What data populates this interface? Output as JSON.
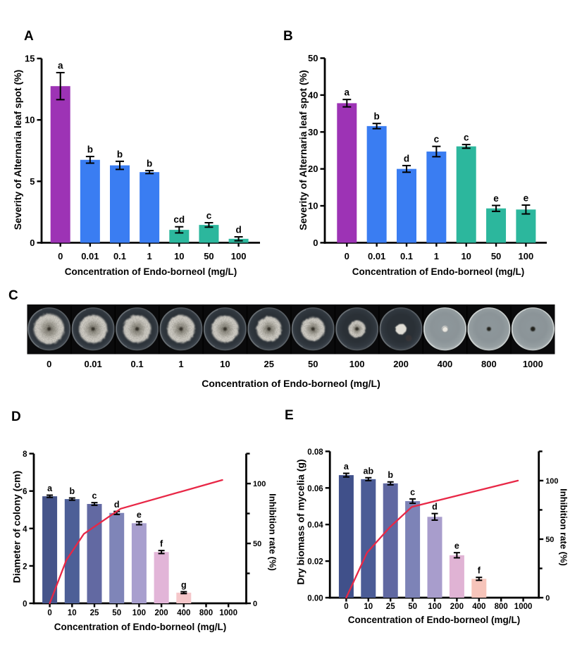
{
  "colors": {
    "purple": "#9d33b5",
    "blue": "#3a7df2",
    "teal": "#2cb79d",
    "red": "#e82746",
    "axis": "#000000"
  },
  "chart_data": [
    {
      "id": "A",
      "type": "bar",
      "panel_label": "A",
      "ylabel": "Severity of Alternaria leaf spot (%)",
      "xlabel": "Concentration of Endo-borneol (mg/L)",
      "categories": [
        "0",
        "0.01",
        "0.1",
        "1",
        "10",
        "50",
        "100"
      ],
      "values": [
        12.75,
        6.75,
        6.3,
        5.75,
        1.05,
        1.45,
        0.32
      ],
      "errors": [
        1.1,
        0.27,
        0.33,
        0.12,
        0.25,
        0.18,
        0.16
      ],
      "sig_letters": [
        "a",
        "b",
        "b",
        "b",
        "cd",
        "c",
        "d"
      ],
      "bar_color_keys": [
        "purple",
        "blue",
        "blue",
        "blue",
        "teal",
        "teal",
        "teal"
      ],
      "yticks": [
        0,
        5,
        10,
        15
      ],
      "ylim": [
        0,
        15
      ],
      "grid": false
    },
    {
      "id": "B",
      "type": "bar",
      "panel_label": "B",
      "ylabel": "Severity of Alternaria leaf spot (%)",
      "xlabel": "Concentration of Endo-borneol (mg/L)",
      "categories": [
        "0",
        "0.01",
        "0.1",
        "1",
        "10",
        "50",
        "100"
      ],
      "values": [
        37.8,
        31.6,
        20.0,
        24.7,
        26.1,
        9.3,
        9.0
      ],
      "errors": [
        1.0,
        0.7,
        0.9,
        1.4,
        0.5,
        0.8,
        1.2
      ],
      "sig_letters": [
        "a",
        "b",
        "d",
        "c",
        "c",
        "e",
        "e"
      ],
      "bar_color_keys": [
        "purple",
        "blue",
        "blue",
        "blue",
        "teal",
        "teal",
        "teal"
      ],
      "yticks": [
        0,
        10,
        20,
        30,
        40,
        50
      ],
      "ylim": [
        0,
        50
      ],
      "grid": false
    },
    {
      "id": "C",
      "type": "photo_strip",
      "panel_label": "C",
      "description": "Photographs of Alternaria colonies on petri dishes at increasing Endo-borneol concentrations",
      "xlabel": "Concentration of Endo-borneol (mg/L)",
      "categories": [
        "0",
        "0.01",
        "0.1",
        "1",
        "10",
        "25",
        "50",
        "100",
        "200",
        "400",
        "800",
        "1000"
      ],
      "colony_radius_px": [
        23,
        21.5,
        21,
        21,
        20.5,
        19,
        18,
        13,
        7.5,
        4.2,
        3,
        3.4
      ],
      "dish_style": [
        "dark",
        "dark",
        "dark",
        "dark",
        "dark",
        "dark",
        "dark",
        "dark",
        "dark",
        "light",
        "light",
        "light"
      ],
      "center_spot": [
        "dark-dot",
        "dark-dot",
        "dark-dot",
        "dark-dot",
        "dark-dot",
        "dark-dot",
        "dark-dot",
        "dark-dot",
        "none",
        "white-plug",
        "dark-dot",
        "dark-dot"
      ]
    },
    {
      "id": "D",
      "type": "bar_line",
      "panel_label": "D",
      "ylabel": "Diameter of colony (cm)",
      "ylabel_right": "Inhibition rate (%)",
      "xlabel": "Concentration of Endo-borneol (mg/L)",
      "categories": [
        "0",
        "10",
        "25",
        "50",
        "100",
        "200",
        "400",
        "800",
        "1000"
      ],
      "values": [
        5.72,
        5.57,
        5.31,
        4.83,
        4.28,
        2.74,
        0.57,
        null,
        null
      ],
      "errors": [
        0.06,
        0.06,
        0.07,
        0.08,
        0.08,
        0.08,
        0.05,
        null,
        null
      ],
      "sig_letters": [
        "a",
        "b",
        "c",
        "d",
        "e",
        "f",
        "g",
        "",
        ""
      ],
      "bar_colors": [
        "#45548a",
        "#4d5f97",
        "#6269a2",
        "#7f85b8",
        "#a89fce",
        "#e2b5d8",
        "#f5c7ca"
      ],
      "yticks": [
        0,
        2,
        4,
        6,
        8
      ],
      "ylim": [
        0,
        8
      ],
      "right_yticks": [
        0,
        50,
        100
      ],
      "right_yticks_minor": [
        25,
        75,
        125
      ],
      "right_ylim": [
        0,
        125
      ],
      "line_series": {
        "name": "Inhibition rate (%)",
        "color_key": "red",
        "vertices_slot_pct": [
          [
            0,
            0
          ],
          [
            0.74,
            36
          ],
          [
            1.53,
            58
          ],
          [
            3.17,
            79
          ],
          [
            7.73,
            103
          ]
        ]
      }
    },
    {
      "id": "E",
      "type": "bar_line",
      "panel_label": "E",
      "ylabel": "Dry biomass of mycelia (g)",
      "ylabel_right": "Inhibition rate (%)",
      "xlabel": "Concentration of Endo-borneol (mg/L)",
      "categories": [
        "0",
        "10",
        "25",
        "50",
        "100",
        "200",
        "400",
        "800",
        "1000"
      ],
      "values": [
        0.067,
        0.0648,
        0.0625,
        0.0528,
        0.0442,
        0.0232,
        0.0103,
        null,
        null
      ],
      "errors": [
        0.001,
        0.0008,
        0.0008,
        0.0012,
        0.0018,
        0.0014,
        0.0008,
        null,
        null
      ],
      "sig_letters": [
        "a",
        "ab",
        "b",
        "c",
        "d",
        "e",
        "f",
        "",
        ""
      ],
      "bar_colors": [
        "#40508a",
        "#4b5c96",
        "#6068a1",
        "#7d83b7",
        "#a89dcc",
        "#e0b3d4",
        "#f6c4ba"
      ],
      "ytick_labels": [
        "0.00",
        "0.02",
        "0.04",
        "0.06",
        "0.08"
      ],
      "yticks": [
        0,
        0.02,
        0.04,
        0.06,
        0.08
      ],
      "ylim": [
        0,
        0.08
      ],
      "right_yticks": [
        0,
        50,
        100
      ],
      "right_yticks_minor": [
        25,
        75,
        125
      ],
      "right_ylim": [
        0,
        125
      ],
      "line_series": {
        "name": "Inhibition rate (%)",
        "color_key": "red",
        "vertices_slot_pct": [
          [
            0,
            0
          ],
          [
            0.94,
            38.5
          ],
          [
            1.96,
            60
          ],
          [
            2.96,
            77.5
          ],
          [
            7.76,
            100
          ]
        ]
      }
    }
  ]
}
